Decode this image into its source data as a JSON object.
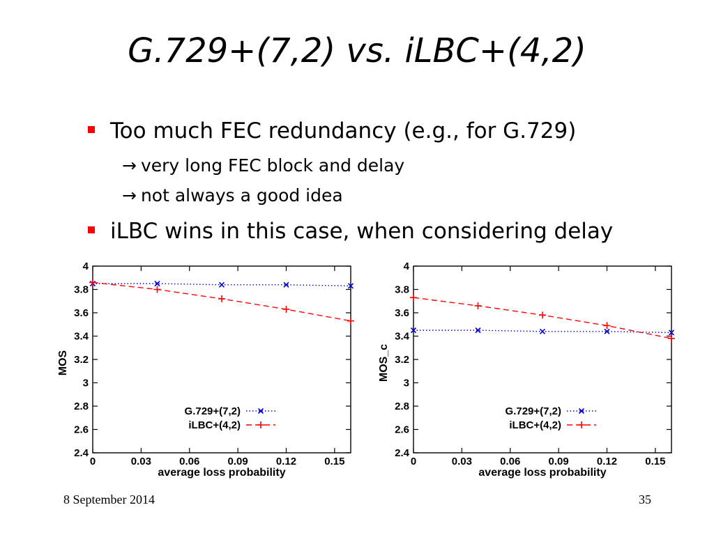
{
  "slide": {
    "title": "G.729+(7,2) vs. iLBC+(4,2)",
    "bullets": [
      {
        "text": "Too much FEC redundancy (e.g., for G.729)",
        "subitems": [
          {
            "arrow": "→",
            "text": "very long FEC block and delay"
          },
          {
            "arrow": "→",
            "text": "not always a good idea"
          }
        ]
      },
      {
        "text": "iLBC wins in this case, when considering delay"
      }
    ]
  },
  "footer": {
    "date": "8 September 2014",
    "page": "35"
  },
  "chart_data": [
    {
      "type": "line",
      "xlabel": "average loss probability",
      "ylabel": "MOS",
      "xlim": [
        0,
        0.16
      ],
      "ylim": [
        2.4,
        4
      ],
      "xticks": [
        "0",
        "0.03",
        "0.06",
        "0.09",
        "0.12",
        "0.15"
      ],
      "yticks": [
        "2.4",
        "2.6",
        "2.8",
        "3",
        "3.2",
        "3.4",
        "3.6",
        "3.8",
        "4"
      ],
      "legend_position": "bottom-right",
      "grid": false,
      "x": [
        0,
        0.04,
        0.08,
        0.12,
        0.16
      ],
      "series": [
        {
          "name": "G.729+(7,2)",
          "color": "#0000cc",
          "style": "dotted",
          "marker": "x",
          "values": [
            3.85,
            3.85,
            3.84,
            3.84,
            3.83
          ]
        },
        {
          "name": "iLBC+(4,2)",
          "color": "#ff0000",
          "style": "dashed",
          "marker": "+",
          "values": [
            3.86,
            3.8,
            3.72,
            3.63,
            3.53
          ]
        }
      ]
    },
    {
      "type": "line",
      "xlabel": "average loss probability",
      "ylabel": "MOS_c",
      "xlim": [
        0,
        0.16
      ],
      "ylim": [
        2.4,
        4
      ],
      "xticks": [
        "0",
        "0.03",
        "0.06",
        "0.09",
        "0.12",
        "0.15"
      ],
      "yticks": [
        "2.4",
        "2.6",
        "2.8",
        "3",
        "3.2",
        "3.4",
        "3.6",
        "3.8",
        "4"
      ],
      "legend_position": "bottom-right",
      "grid": false,
      "x": [
        0,
        0.04,
        0.08,
        0.12,
        0.16
      ],
      "series": [
        {
          "name": "G.729+(7,2)",
          "color": "#0000cc",
          "style": "dotted",
          "marker": "x",
          "values": [
            3.45,
            3.45,
            3.44,
            3.44,
            3.43
          ]
        },
        {
          "name": "iLBC+(4,2)",
          "color": "#ff0000",
          "style": "dashed",
          "marker": "+",
          "values": [
            3.73,
            3.66,
            3.58,
            3.49,
            3.38
          ]
        }
      ]
    }
  ]
}
